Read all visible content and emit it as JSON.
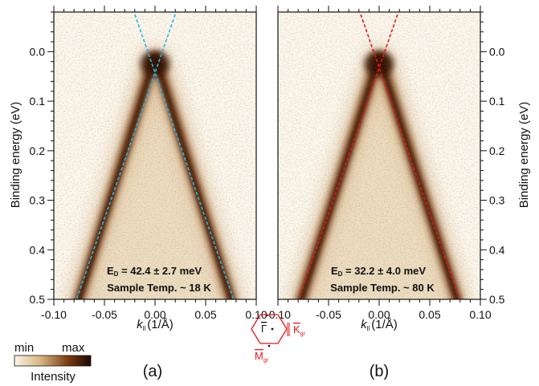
{
  "chart_data": [
    {
      "type": "heatmap",
      "panel_label": "(a)",
      "xlabel_main": "k",
      "xlabel_sub": "ll",
      "xlabel_unit": "(1/Å)",
      "ylabel": "Binding energy (eV)",
      "xlim": [
        -0.1,
        0.1
      ],
      "ylim": [
        0.5,
        -0.08
      ],
      "x_ticks": [
        "-0.10",
        "-0.05",
        "0.00",
        "0.05",
        "0.10"
      ],
      "y_ticks": [
        "0.0",
        "0.1",
        "0.2",
        "0.3",
        "0.4",
        "0.5"
      ],
      "annotation_energy_prefix": "E",
      "annotation_energy_sub": "D",
      "annotation_energy_value": " = 42.4 ± 2.7 meV",
      "annotation_temp": "Sample Temp. ~ 18 K",
      "dirac_point": {
        "k": 0.0,
        "E": 0.0424
      },
      "band_slope_eV_per_invA": 5.9,
      "fit_line_color": "#29b6e6"
    },
    {
      "type": "heatmap",
      "panel_label": "(b)",
      "xlabel_main": "k",
      "xlabel_sub": "ll",
      "xlabel_unit": "(1/Å)",
      "ylabel": "Binding energy (eV)",
      "xlim": [
        -0.1,
        0.1
      ],
      "ylim": [
        0.5,
        -0.08
      ],
      "x_ticks": [
        "-0.10",
        "-0.05",
        "0.00",
        "0.05",
        "0.10"
      ],
      "y_ticks": [
        "0.0",
        "0.1",
        "0.2",
        "0.3",
        "0.4",
        "0.5"
      ],
      "annotation_energy_prefix": "E",
      "annotation_energy_sub": "D",
      "annotation_energy_value": " = 32.2 ± 4.0 meV",
      "annotation_temp": "Sample Temp. ~ 80 K",
      "dirac_point": {
        "k": 0.0,
        "E": 0.0322
      },
      "band_slope_eV_per_invA": 5.9,
      "fit_line_color": "#e8141b"
    }
  ],
  "colorbar": {
    "min_label": "min",
    "max_label": "max",
    "title": "Intensity"
  },
  "brillouin_zone": {
    "gamma": "Γ",
    "k_label": "K",
    "k_sub": "gr",
    "m_label": "M",
    "m_sub": "gr",
    "color": "#e8141b"
  }
}
